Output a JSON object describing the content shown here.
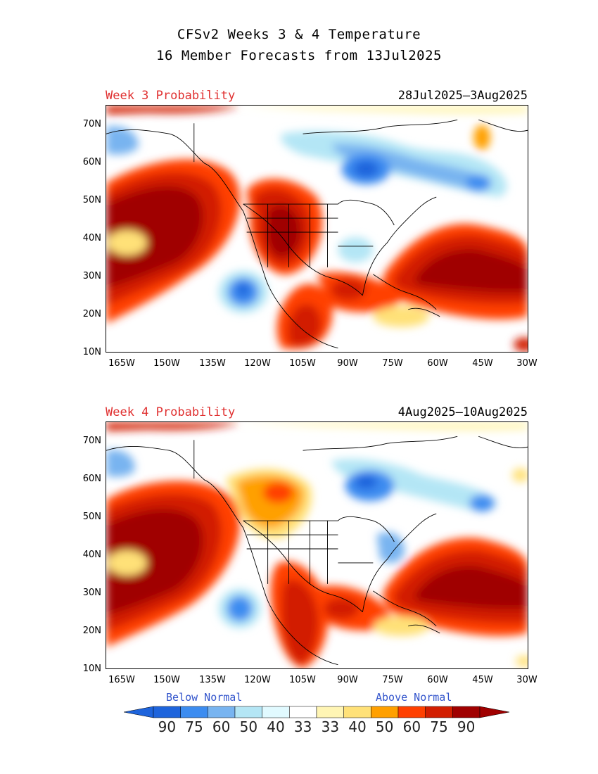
{
  "header": {
    "title_line1": "CFSv2 Weeks 3 & 4 Temperature",
    "title_line2": "16 Member Forecasts from 13Jul2025"
  },
  "panels": [
    {
      "label": "Week 3 Probability",
      "dates": "28Jul2025—3Aug2025"
    },
    {
      "label": "Week 4 Probability",
      "dates": "4Aug2025—10Aug2025"
    }
  ],
  "axes": {
    "lat_labels": [
      "70N",
      "60N",
      "50N",
      "40N",
      "30N",
      "20N",
      "10N"
    ],
    "lon_labels": [
      "165W",
      "150W",
      "135W",
      "120W",
      "105W",
      "90W",
      "75W",
      "60W",
      "45W",
      "30W"
    ]
  },
  "legend": {
    "below_label": "Below Normal",
    "above_label": "Above Normal",
    "values": [
      "90",
      "75",
      "60",
      "50",
      "40",
      "33",
      "33",
      "40",
      "50",
      "60",
      "75",
      "90"
    ],
    "colors": [
      "#1e64dc",
      "#3c8cf0",
      "#78b4f0",
      "#b4e6f5",
      "#e1faff",
      "#ffffff",
      "#fff5b4",
      "#ffe178",
      "#ffa000",
      "#ff4000",
      "#d21e00",
      "#a00000"
    ],
    "left_arrow_color": "#1e64dc",
    "right_arrow_color": "#a00000"
  }
}
